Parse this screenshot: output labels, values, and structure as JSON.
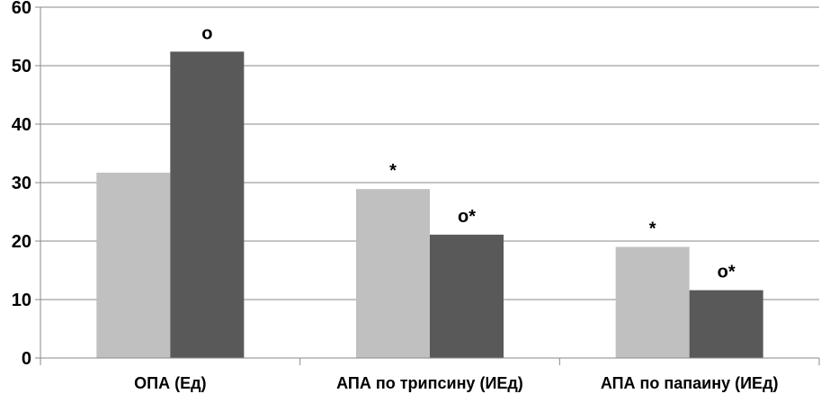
{
  "chart_data": {
    "type": "bar",
    "title": "",
    "xlabel": "",
    "ylabel": "",
    "ylim": [
      0,
      60
    ],
    "yticks": [
      0,
      10,
      20,
      30,
      40,
      50,
      60
    ],
    "grid": true,
    "legend": "none",
    "categories": [
      "ОПА (Ед)",
      "АПА по трипсину (ИЕд)",
      "АПА по папаину (ИЕд)"
    ],
    "series": [
      {
        "color": "#c0c0c0",
        "values": [
          31.7,
          28.9,
          19.0
        ],
        "annotations": [
          "",
          "*",
          "*"
        ]
      },
      {
        "color": "#595959",
        "values": [
          52.4,
          21.1,
          11.6
        ],
        "annotations": [
          "o",
          "o*",
          "o*"
        ]
      }
    ],
    "colors": {
      "gridline": "#898989",
      "axis": "#898989"
    }
  }
}
